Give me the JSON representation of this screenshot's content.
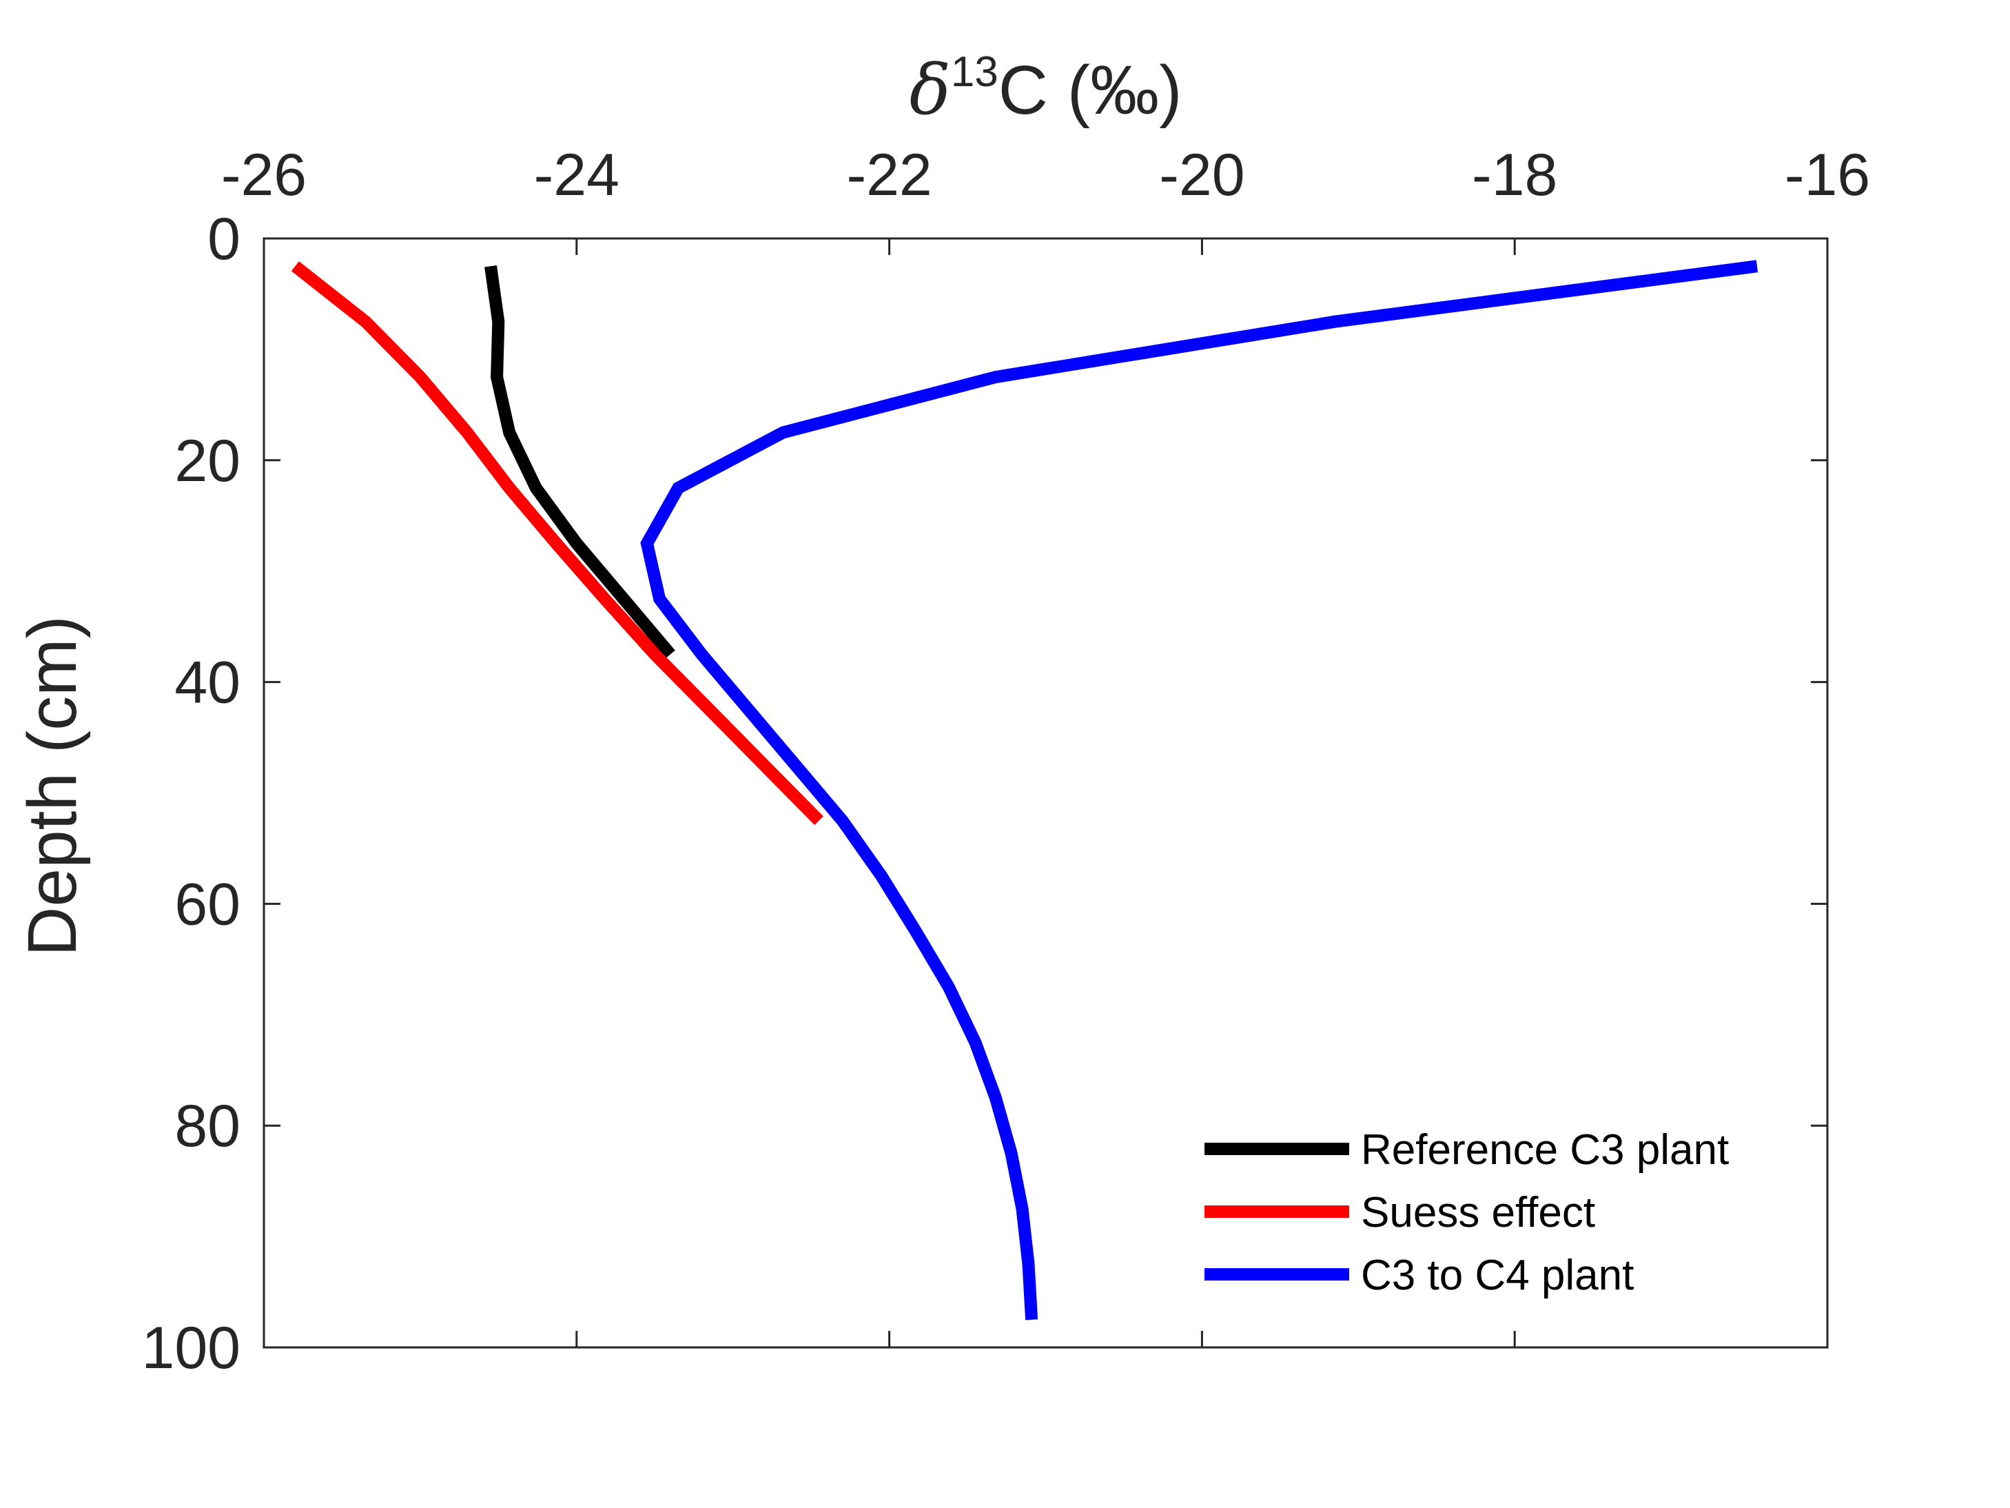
{
  "chart_data": {
    "type": "line",
    "x_axis": {
      "label": "C (‰)",
      "label_symbol": "δ",
      "label_superscript": "13",
      "position": "top",
      "range": [
        -26,
        -16
      ],
      "ticks": [
        -26,
        -24,
        -22,
        -20,
        -18,
        -16
      ],
      "tick_labels": [
        "-26",
        "-24",
        "-22",
        "-20",
        "-18",
        "-16"
      ]
    },
    "y_axis": {
      "label": "Depth (cm)",
      "range": [
        0,
        100
      ],
      "reversed": true,
      "ticks": [
        0,
        20,
        40,
        60,
        80,
        100
      ],
      "tick_labels": [
        "0",
        "20",
        "40",
        "60",
        "80",
        "100"
      ]
    },
    "grid": false,
    "legend_position": "bottom-right",
    "series": [
      {
        "name": "Reference C3 plant",
        "color": "#000000",
        "points": [
          [
            -24.55,
            2.5
          ],
          [
            -24.5,
            7.5
          ],
          [
            -24.51,
            12.5
          ],
          [
            -24.43,
            17.5
          ],
          [
            -24.26,
            22.5
          ],
          [
            -24.0,
            27.5
          ],
          [
            -23.7,
            32.5
          ],
          [
            -23.4,
            37.5
          ]
        ]
      },
      {
        "name": "Suess effect",
        "color": "#ff0000",
        "points": [
          [
            -25.8,
            2.5
          ],
          [
            -25.35,
            7.5
          ],
          [
            -25.0,
            12.5
          ],
          [
            -24.7,
            17.5
          ],
          [
            -24.43,
            22.5
          ],
          [
            -24.13,
            27.5
          ],
          [
            -23.82,
            32.5
          ],
          [
            -23.5,
            37.5
          ],
          [
            -23.15,
            42.5
          ],
          [
            -22.8,
            47.5
          ],
          [
            -22.45,
            52.5
          ]
        ]
      },
      {
        "name": "C3 to C4 plant",
        "color": "#0000ff",
        "points": [
          [
            -16.45,
            2.5
          ],
          [
            -19.15,
            7.5
          ],
          [
            -21.32,
            12.5
          ],
          [
            -22.68,
            17.5
          ],
          [
            -23.35,
            22.5
          ],
          [
            -23.55,
            27.5
          ],
          [
            -23.47,
            32.5
          ],
          [
            -23.2,
            37.5
          ],
          [
            -22.9,
            42.5
          ],
          [
            -22.6,
            47.5
          ],
          [
            -22.3,
            52.5
          ],
          [
            -22.05,
            57.5
          ],
          [
            -21.83,
            62.5
          ],
          [
            -21.62,
            67.5
          ],
          [
            -21.45,
            72.5
          ],
          [
            -21.32,
            77.5
          ],
          [
            -21.22,
            82.5
          ],
          [
            -21.15,
            87.5
          ],
          [
            -21.11,
            92.5
          ],
          [
            -21.09,
            97.5
          ]
        ]
      }
    ]
  }
}
